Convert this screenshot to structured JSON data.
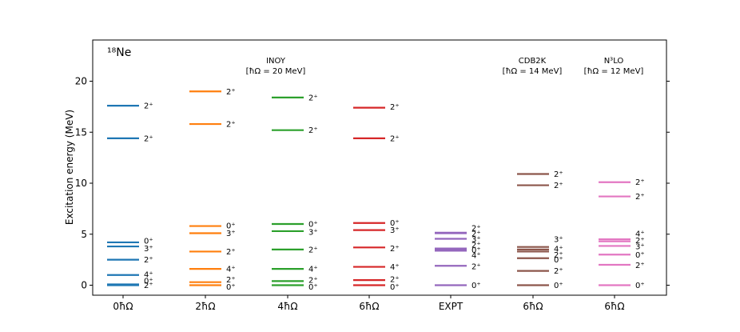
{
  "chart_data": {
    "type": "level-scheme",
    "nucleus": "¹⁸Ne",
    "ylabel": "Excitation energy (MeV)",
    "ylim": [
      -1,
      24
    ],
    "yticks": [
      0,
      5,
      10,
      15,
      20
    ],
    "annotations": [
      {
        "name": "inoy",
        "text": "INOY",
        "sub": "[ħΩ = 20 MeV]"
      },
      {
        "name": "cdb2k",
        "text": "CDB2K",
        "sub": "[ħΩ = 14 MeV]"
      },
      {
        "name": "n3lo",
        "text": "N³LO",
        "sub": "[ħΩ = 12 MeV]"
      }
    ],
    "columns": [
      {
        "label": "0ħΩ",
        "color": "#1f77b4",
        "levels": [
          {
            "E": 0.0,
            "J": "2⁺",
            "Y": 0.0
          },
          {
            "E": 0.08,
            "J": "0⁺",
            "Y": 0.45
          },
          {
            "E": 1.0,
            "J": "4⁺",
            "Y": 1.05
          },
          {
            "E": 2.5,
            "J": "2⁺",
            "Y": 2.5
          },
          {
            "E": 3.8,
            "J": "3⁺",
            "Y": 3.6
          },
          {
            "E": 4.2,
            "J": "0⁺",
            "Y": 4.35
          },
          {
            "E": 14.4,
            "J": "2⁺",
            "Y": 14.4
          },
          {
            "E": 17.6,
            "J": "2⁺",
            "Y": 17.6
          }
        ]
      },
      {
        "label": "2ħΩ",
        "color": "#ff7f0e",
        "levels": [
          {
            "E": 0.0,
            "J": "0⁺",
            "Y": -0.15
          },
          {
            "E": 0.3,
            "J": "2⁺",
            "Y": 0.55
          },
          {
            "E": 1.6,
            "J": "4⁺",
            "Y": 1.6
          },
          {
            "E": 3.3,
            "J": "2⁺",
            "Y": 3.3
          },
          {
            "E": 5.1,
            "J": "3⁺",
            "Y": 5.1
          },
          {
            "E": 5.8,
            "J": "0⁺",
            "Y": 5.85
          },
          {
            "E": 15.8,
            "J": "2⁺",
            "Y": 15.8
          },
          {
            "E": 19.0,
            "J": "2⁺",
            "Y": 19.0
          }
        ]
      },
      {
        "label": "4ħΩ",
        "color": "#2ca02c",
        "levels": [
          {
            "E": 0.0,
            "J": "0⁺",
            "Y": -0.15
          },
          {
            "E": 0.4,
            "J": "2⁺",
            "Y": 0.5
          },
          {
            "E": 1.6,
            "J": "4⁺",
            "Y": 1.6
          },
          {
            "E": 3.5,
            "J": "2⁺",
            "Y": 3.5
          },
          {
            "E": 5.3,
            "J": "3⁺",
            "Y": 5.2
          },
          {
            "E": 6.0,
            "J": "0⁺",
            "Y": 6.0
          },
          {
            "E": 15.2,
            "J": "2⁺",
            "Y": 15.2
          },
          {
            "E": 18.4,
            "J": "2⁺",
            "Y": 18.4
          }
        ]
      },
      {
        "label": "6ħΩ",
        "color": "#d62728",
        "levels": [
          {
            "E": 0.0,
            "J": "0⁺",
            "Y": -0.15
          },
          {
            "E": 0.5,
            "J": "2⁺",
            "Y": 0.6
          },
          {
            "E": 1.8,
            "J": "4⁺",
            "Y": 1.8
          },
          {
            "E": 3.7,
            "J": "2⁺",
            "Y": 3.6
          },
          {
            "E": 5.4,
            "J": "3⁺",
            "Y": 5.4
          },
          {
            "E": 6.1,
            "J": "0⁺",
            "Y": 6.1
          },
          {
            "E": 14.4,
            "J": "2⁺",
            "Y": 14.4
          },
          {
            "E": 17.4,
            "J": "2⁺",
            "Y": 17.5
          }
        ]
      },
      {
        "label": "EXPT",
        "color": "#9467bd",
        "levels": [
          {
            "E": 0.0,
            "J": "0⁺",
            "Y": 0.0
          },
          {
            "E": 1.9,
            "J": "2⁺",
            "Y": 1.85
          },
          {
            "E": 3.38,
            "J": "4⁺",
            "Y": 2.95
          },
          {
            "E": 3.5,
            "J": "0⁺",
            "Y": 3.45
          },
          {
            "E": 3.6,
            "J": "2⁺",
            "Y": 3.95
          },
          {
            "E": 4.55,
            "J": "3⁺",
            "Y": 4.5
          },
          {
            "E": 5.1,
            "J": "2⁺",
            "Y": 5.05
          },
          {
            "E": 5.15,
            "J": "2⁺",
            "Y": 5.6
          }
        ]
      },
      {
        "label": "6ħΩ",
        "color": "#8c564b",
        "levels": [
          {
            "E": 0.0,
            "J": "0⁺",
            "Y": 0.0
          },
          {
            "E": 1.4,
            "J": "2⁺",
            "Y": 1.4
          },
          {
            "E": 2.65,
            "J": "0⁺",
            "Y": 2.5
          },
          {
            "E": 3.3,
            "J": "2⁺",
            "Y": 3.0
          },
          {
            "E": 3.5,
            "J": "4⁺",
            "Y": 3.55
          },
          {
            "E": 3.75,
            "J": "3⁺",
            "Y": 4.5
          },
          {
            "E": 9.8,
            "J": "2⁺",
            "Y": 9.8
          },
          {
            "E": 10.9,
            "J": "2⁺",
            "Y": 10.9
          }
        ]
      },
      {
        "label": "6ħΩ",
        "color": "#e377c2",
        "levels": [
          {
            "E": 0.0,
            "J": "0⁺",
            "Y": 0.0
          },
          {
            "E": 2.0,
            "J": "2⁺",
            "Y": 1.95
          },
          {
            "E": 3.0,
            "J": "0⁺",
            "Y": 3.0
          },
          {
            "E": 3.85,
            "J": "3⁺",
            "Y": 3.8
          },
          {
            "E": 4.3,
            "J": "2⁺",
            "Y": 4.4
          },
          {
            "E": 4.5,
            "J": "4⁺",
            "Y": 5.05
          },
          {
            "E": 8.7,
            "J": "2⁺",
            "Y": 8.7
          },
          {
            "E": 10.1,
            "J": "2⁺",
            "Y": 10.1
          }
        ]
      }
    ]
  }
}
